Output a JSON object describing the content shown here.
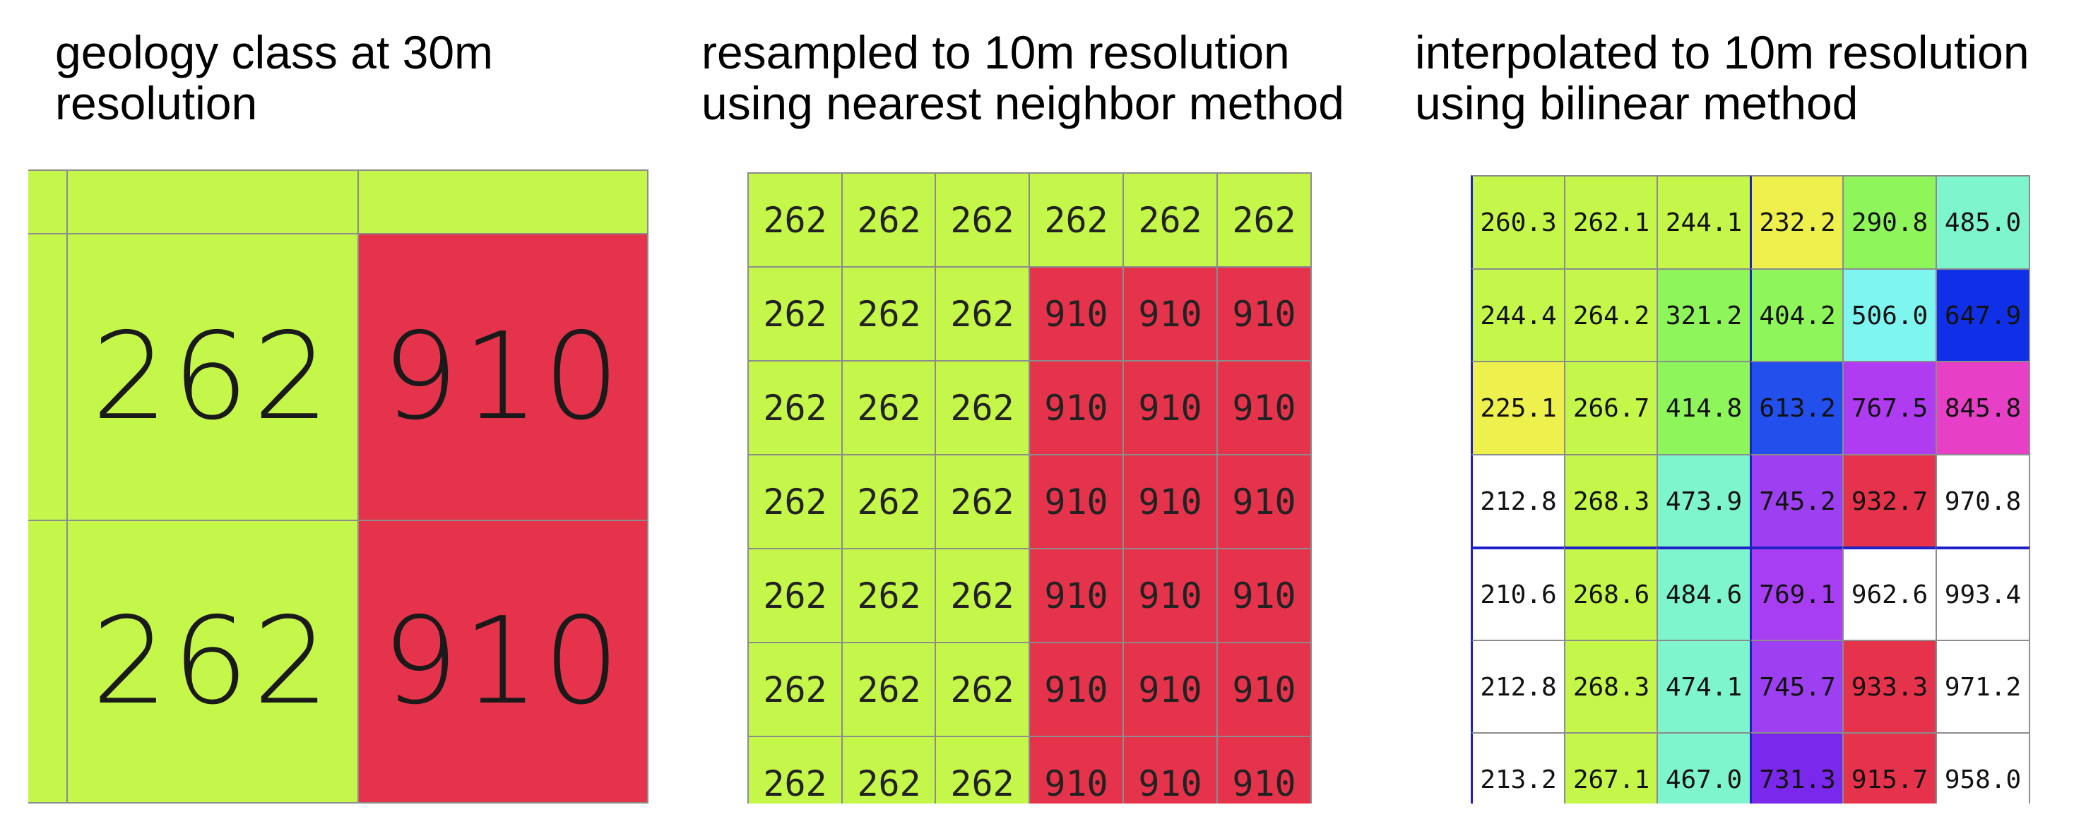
{
  "titles": {
    "panel1": "geology class at 30m\nresolution",
    "panel2": "resampled to 10m resolution\nusing nearest neighbor method",
    "panel3": "interpolated to 10m resolution\nusing bilinear method"
  },
  "colors": {
    "gridline": "#8c8c8c",
    "class_262": "#c5f74a",
    "class_910": "#e5334c",
    "block_border": "#2020c8"
  },
  "panel1": {
    "rows": [
      [
        "",
        "",
        ""
      ],
      [
        "",
        "262",
        "910"
      ],
      [
        "",
        "262",
        "910"
      ]
    ],
    "fills": [
      [
        "#c5f74a",
        "#c5f74a",
        "#c5f74a"
      ],
      [
        "#c5f74a",
        "#c5f74a",
        "#e5334c"
      ],
      [
        "#c5f74a",
        "#c5f74a",
        "#e5334c"
      ]
    ]
  },
  "panel2": {
    "rows": [
      [
        "262",
        "262",
        "262",
        "262",
        "262",
        "262"
      ],
      [
        "262",
        "262",
        "262",
        "910",
        "910",
        "910"
      ],
      [
        "262",
        "262",
        "262",
        "910",
        "910",
        "910"
      ],
      [
        "262",
        "262",
        "262",
        "910",
        "910",
        "910"
      ],
      [
        "262",
        "262",
        "262",
        "910",
        "910",
        "910"
      ],
      [
        "262",
        "262",
        "262",
        "910",
        "910",
        "910"
      ],
      [
        "262",
        "262",
        "262",
        "910",
        "910",
        "910"
      ]
    ],
    "fills": [
      [
        "#c5f74a",
        "#c5f74a",
        "#c5f74a",
        "#c5f74a",
        "#c5f74a",
        "#c5f74a"
      ],
      [
        "#c5f74a",
        "#c5f74a",
        "#c5f74a",
        "#e5334c",
        "#e5334c",
        "#e5334c"
      ],
      [
        "#c5f74a",
        "#c5f74a",
        "#c5f74a",
        "#e5334c",
        "#e5334c",
        "#e5334c"
      ],
      [
        "#c5f74a",
        "#c5f74a",
        "#c5f74a",
        "#e5334c",
        "#e5334c",
        "#e5334c"
      ],
      [
        "#c5f74a",
        "#c5f74a",
        "#c5f74a",
        "#e5334c",
        "#e5334c",
        "#e5334c"
      ],
      [
        "#c5f74a",
        "#c5f74a",
        "#c5f74a",
        "#e5334c",
        "#e5334c",
        "#e5334c"
      ],
      [
        "#c5f74a",
        "#c5f74a",
        "#c5f74a",
        "#e5334c",
        "#e5334c",
        "#e5334c"
      ]
    ]
  },
  "panel3": {
    "rows": [
      [
        "260.3",
        "262.1",
        "244.1",
        "232.2",
        "290.8",
        "485.0"
      ],
      [
        "244.4",
        "264.2",
        "321.2",
        "404.2",
        "506.0",
        "647.9"
      ],
      [
        "225.1",
        "266.7",
        "414.8",
        "613.2",
        "767.5",
        "845.8"
      ],
      [
        "212.8",
        "268.3",
        "473.9",
        "745.2",
        "932.7",
        "970.8"
      ],
      [
        "210.6",
        "268.6",
        "484.6",
        "769.1",
        "962.6",
        "993.4"
      ],
      [
        "212.8",
        "268.3",
        "474.1",
        "745.7",
        "933.3",
        "971.2"
      ],
      [
        "213.2",
        "267.1",
        "467.0",
        "731.3",
        "915.7",
        "958.0"
      ]
    ],
    "fills": [
      [
        "#c5f74a",
        "#c5f74a",
        "#c5f74a",
        "#eef04e",
        "#8ef55a",
        "#7ff5cd"
      ],
      [
        "#c5f74a",
        "#c5f74a",
        "#8ef55a",
        "#8ef55a",
        "#7ff5f0",
        "#1030e8"
      ],
      [
        "#eef04e",
        "#c5f74a",
        "#8ef55a",
        "#2350ec",
        "#b03cf2",
        "#e73fc5"
      ],
      [
        "#ffffff",
        "#c5f74a",
        "#7ff5cd",
        "#9c40f2",
        "#e5334c",
        "#ffffff"
      ],
      [
        "#ffffff",
        "#c5f74a",
        "#7ff5cd",
        "#a83ef2",
        "#ffffff",
        "#ffffff"
      ],
      [
        "#ffffff",
        "#c5f74a",
        "#7ff5cd",
        "#9c40f2",
        "#e5334c",
        "#ffffff"
      ],
      [
        "#ffffff",
        "#c5f74a",
        "#7ff5cd",
        "#7a28ec",
        "#e5334c",
        "#ffffff"
      ]
    ]
  }
}
